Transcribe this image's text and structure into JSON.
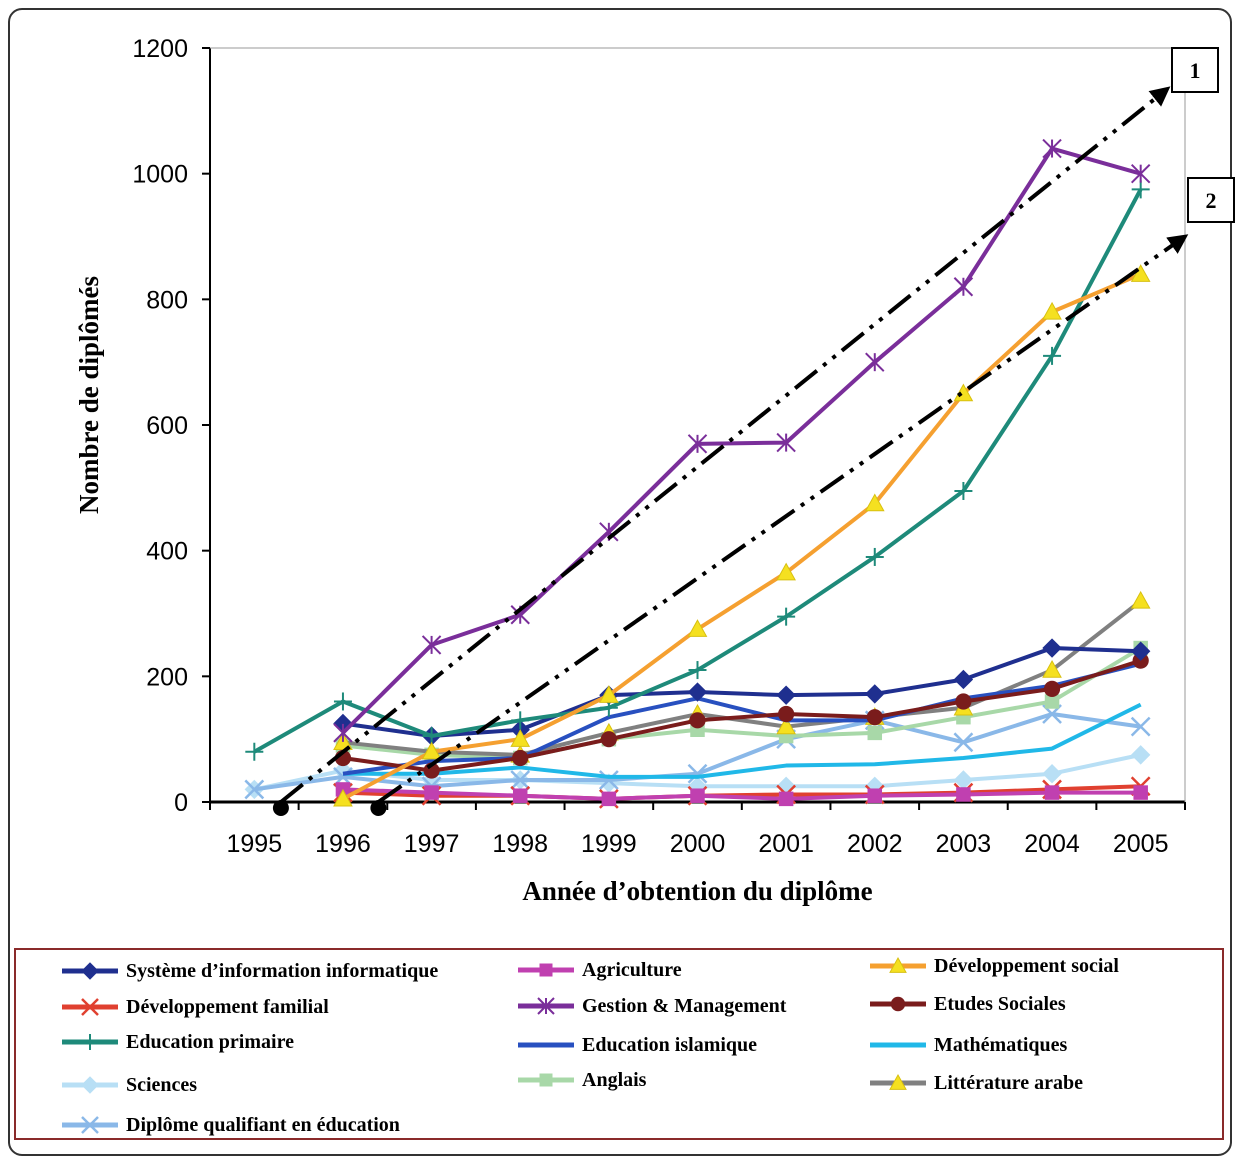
{
  "chart_data": {
    "type": "line",
    "xlabel": "Année d’obtention du diplôme",
    "ylabel": "Nombre de diplômés",
    "x": [
      1995,
      1996,
      1997,
      1998,
      1999,
      2000,
      2001,
      2002,
      2003,
      2004,
      2005
    ],
    "ylim": [
      0,
      1200
    ],
    "yticks": [
      0,
      200,
      400,
      600,
      800,
      1000,
      1200
    ],
    "grid": false,
    "legend_position": "bottom",
    "series": [
      {
        "name": "Système d’information informatique",
        "color": "#1f2f8f",
        "marker": "diamond",
        "values": [
          null,
          125,
          105,
          115,
          170,
          175,
          170,
          172,
          195,
          245,
          240
        ]
      },
      {
        "name": "Agriculture",
        "color": "#c040b0",
        "marker": "square",
        "values": [
          null,
          20,
          15,
          10,
          5,
          10,
          5,
          10,
          12,
          15,
          15
        ]
      },
      {
        "name": "Développement social",
        "color": "#f5a030",
        "marker": "triangle",
        "values": [
          null,
          5,
          80,
          100,
          170,
          275,
          365,
          475,
          650,
          780,
          840
        ]
      },
      {
        "name": "Développement familial",
        "color": "#e04030",
        "marker": "x",
        "values": [
          null,
          15,
          10,
          10,
          5,
          10,
          12,
          12,
          15,
          20,
          25
        ]
      },
      {
        "name": "Gestion & Management",
        "color": "#7a2e9a",
        "marker": "asterisk",
        "values": [
          null,
          110,
          250,
          298,
          430,
          570,
          572,
          700,
          820,
          1040,
          1000
        ]
      },
      {
        "name": "Etudes Sociales",
        "color": "#7a1c1c",
        "marker": "circle",
        "values": [
          null,
          70,
          50,
          70,
          100,
          130,
          140,
          135,
          160,
          180,
          225
        ]
      },
      {
        "name": "Education primaire",
        "color": "#1e8a7a",
        "marker": "plus",
        "values": [
          80,
          160,
          105,
          130,
          150,
          210,
          295,
          390,
          495,
          710,
          975
        ]
      },
      {
        "name": "Education islamique",
        "color": "#2850c0",
        "marker": "none",
        "values": [
          null,
          45,
          65,
          70,
          135,
          165,
          130,
          130,
          165,
          185,
          220
        ]
      },
      {
        "name": "Mathématiques",
        "color": "#20b8e8",
        "marker": "none",
        "values": [
          null,
          45,
          45,
          55,
          40,
          40,
          58,
          60,
          70,
          85,
          155
        ]
      },
      {
        "name": "Sciences",
        "color": "#b8dff5",
        "marker": "diamond",
        "values": [
          20,
          50,
          35,
          35,
          30,
          25,
          25,
          25,
          35,
          45,
          75
        ]
      },
      {
        "name": "Anglais",
        "color": "#a8d8a8",
        "marker": "square",
        "values": [
          null,
          90,
          75,
          70,
          100,
          115,
          105,
          110,
          135,
          160,
          245
        ]
      },
      {
        "name": "Littérature arabe",
        "color": "#808080",
        "marker": "triangle",
        "values": [
          null,
          95,
          80,
          75,
          110,
          140,
          120,
          135,
          150,
          210,
          320
        ]
      },
      {
        "name": "Diplôme qualifiant en éducation",
        "color": "#8ab8e8",
        "marker": "x",
        "values": [
          20,
          40,
          25,
          35,
          35,
          45,
          100,
          130,
          95,
          140,
          120
        ]
      }
    ],
    "annotations": [
      {
        "label": "1",
        "from": [
          1995.3,
          0
        ],
        "to": [
          2005.3,
          1135
        ]
      },
      {
        "label": "2",
        "from": [
          1996.4,
          0
        ],
        "to": [
          2005.5,
          900
        ]
      }
    ]
  }
}
